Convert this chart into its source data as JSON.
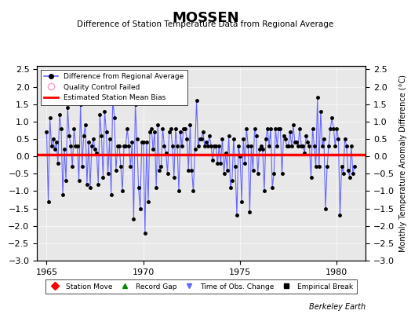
{
  "title": "MOSSEN",
  "subtitle": "Difference of Station Temperature Data from Regional Average",
  "ylabel_right": "Monthly Temperature Anomaly Difference (°C)",
  "bias_value": 0.05,
  "xlim": [
    1964.5,
    1981.5
  ],
  "ylim": [
    -3.0,
    2.6
  ],
  "yticks": [
    -3,
    -2.5,
    -2,
    -1.5,
    -1,
    -0.5,
    0,
    0.5,
    1,
    1.5,
    2,
    2.5
  ],
  "xticks": [
    1965,
    1970,
    1975,
    1980
  ],
  "line_color": "#6666ff",
  "dot_color": "#000000",
  "bias_color": "#ff0000",
  "background_color": "#e8e8e8",
  "footer_text": "Berkeley Earth",
  "legend1_entries": [
    {
      "label": "Difference from Regional Average",
      "color": "#6666ff",
      "marker": "o",
      "linestyle": "-"
    },
    {
      "label": "Quality Control Failed",
      "color": "#ff99cc",
      "marker": "o",
      "linestyle": "none"
    },
    {
      "label": "Estimated Station Mean Bias",
      "color": "#ff0000",
      "marker": "none",
      "linestyle": "-"
    }
  ],
  "legend2_entries": [
    {
      "label": "Station Move",
      "color": "#ff0000",
      "marker": "D",
      "linestyle": "none"
    },
    {
      "label": "Record Gap",
      "color": "#008800",
      "marker": "^",
      "linestyle": "none"
    },
    {
      "label": "Time of Obs. Change",
      "color": "#6666ff",
      "marker": "v",
      "linestyle": "none"
    },
    {
      "label": "Empirical Break",
      "color": "#000000",
      "marker": "s",
      "linestyle": "none"
    }
  ],
  "data_x": [
    1965.0,
    1965.083,
    1965.167,
    1965.25,
    1965.333,
    1965.417,
    1965.5,
    1965.583,
    1965.667,
    1965.75,
    1965.833,
    1965.917,
    1966.0,
    1966.083,
    1966.167,
    1966.25,
    1966.333,
    1966.417,
    1966.5,
    1966.583,
    1966.667,
    1966.75,
    1966.833,
    1966.917,
    1967.0,
    1967.083,
    1967.167,
    1967.25,
    1967.333,
    1967.417,
    1967.5,
    1967.583,
    1967.667,
    1967.75,
    1967.833,
    1967.917,
    1968.0,
    1968.083,
    1968.167,
    1968.25,
    1968.333,
    1968.417,
    1968.5,
    1968.583,
    1968.667,
    1968.75,
    1968.833,
    1968.917,
    1969.0,
    1969.083,
    1969.167,
    1969.25,
    1969.333,
    1969.417,
    1969.5,
    1969.583,
    1969.667,
    1969.75,
    1969.833,
    1969.917,
    1970.0,
    1970.083,
    1970.167,
    1970.25,
    1970.333,
    1970.417,
    1970.5,
    1970.583,
    1970.667,
    1970.75,
    1970.833,
    1970.917,
    1971.0,
    1971.083,
    1971.167,
    1971.25,
    1971.333,
    1971.417,
    1971.5,
    1971.583,
    1971.667,
    1971.75,
    1971.833,
    1971.917,
    1972.0,
    1972.083,
    1972.167,
    1972.25,
    1972.333,
    1972.417,
    1972.5,
    1972.583,
    1972.667,
    1972.75,
    1972.833,
    1972.917,
    1973.0,
    1973.083,
    1973.167,
    1973.25,
    1973.333,
    1973.417,
    1973.5,
    1973.583,
    1973.667,
    1973.75,
    1973.833,
    1973.917,
    1974.0,
    1974.083,
    1974.167,
    1974.25,
    1974.333,
    1974.417,
    1974.5,
    1974.583,
    1974.667,
    1974.75,
    1974.833,
    1974.917,
    1975.0,
    1975.083,
    1975.167,
    1975.25,
    1975.333,
    1975.417,
    1975.5,
    1975.583,
    1975.667,
    1975.75,
    1975.833,
    1975.917,
    1976.0,
    1976.083,
    1976.167,
    1976.25,
    1976.333,
    1976.417,
    1976.5,
    1976.583,
    1976.667,
    1976.75,
    1976.833,
    1976.917,
    1977.0,
    1977.083,
    1977.167,
    1977.25,
    1977.333,
    1977.417,
    1977.5,
    1977.583,
    1977.667,
    1977.75,
    1977.833,
    1977.917,
    1978.0,
    1978.083,
    1978.167,
    1978.25,
    1978.333,
    1978.417,
    1978.5,
    1978.583,
    1978.667,
    1978.75,
    1978.833,
    1978.917,
    1979.0,
    1979.083,
    1979.167,
    1979.25,
    1979.333,
    1979.417,
    1979.5,
    1979.583,
    1979.667,
    1979.75,
    1979.833,
    1979.917,
    1980.0,
    1980.083,
    1980.167,
    1980.25,
    1980.333,
    1980.417,
    1980.5,
    1980.583,
    1980.667,
    1980.75,
    1980.833,
    1980.917
  ],
  "data_y": [
    0.7,
    -1.3,
    1.1,
    0.3,
    0.5,
    0.2,
    0.4,
    -0.2,
    1.2,
    0.8,
    -1.1,
    0.2,
    -0.7,
    1.4,
    0.6,
    0.3,
    -0.3,
    0.8,
    0.3,
    0.3,
    -0.7,
    1.5,
    -0.3,
    0.6,
    0.9,
    -0.8,
    0.4,
    -0.9,
    0.3,
    0.5,
    0.2,
    0.1,
    -0.8,
    1.2,
    0.6,
    -0.6,
    1.3,
    0.7,
    -0.5,
    0.5,
    -1.1,
    1.7,
    1.1,
    -0.4,
    0.3,
    0.3,
    -0.3,
    -1.0,
    0.3,
    0.3,
    0.8,
    0.3,
    -0.3,
    0.4,
    -1.8,
    1.5,
    0.5,
    -0.9,
    -1.5,
    0.4,
    0.4,
    -2.2,
    0.4,
    -1.3,
    0.7,
    0.8,
    0.2,
    0.7,
    -0.9,
    0.9,
    -0.4,
    -0.3,
    0.8,
    0.3,
    0.1,
    -0.5,
    0.7,
    0.8,
    0.3,
    -0.6,
    0.8,
    0.3,
    -1.0,
    0.7,
    0.3,
    0.8,
    0.8,
    0.5,
    -0.4,
    0.9,
    -0.4,
    -1.0,
    0.2,
    1.6,
    0.3,
    0.5,
    0.5,
    0.7,
    0.3,
    0.4,
    0.3,
    0.6,
    0.3,
    -0.1,
    0.3,
    0.3,
    -0.2,
    0.3,
    -0.2,
    0.5,
    -0.5,
    0.1,
    -0.4,
    0.6,
    -0.9,
    -0.7,
    0.5,
    -0.3,
    -1.7,
    0.3,
    0.0,
    -1.3,
    0.5,
    -0.2,
    0.8,
    0.3,
    -1.6,
    0.3,
    -0.4,
    0.8,
    0.6,
    -0.5,
    0.2,
    0.3,
    0.2,
    -1.0,
    0.5,
    0.8,
    0.3,
    0.8,
    -0.9,
    -0.5,
    0.8,
    0.3,
    0.8,
    0.8,
    -0.5,
    0.6,
    0.5,
    0.3,
    0.3,
    0.7,
    0.3,
    0.9,
    0.4,
    0.4,
    0.3,
    0.8,
    0.3,
    0.3,
    0.1,
    0.6,
    0.4,
    0.3,
    -0.6,
    0.8,
    0.3,
    -0.3,
    1.7,
    -0.3,
    1.3,
    0.3,
    0.5,
    -1.5,
    -0.3,
    0.3,
    0.8,
    1.1,
    0.8,
    0.3,
    0.8,
    0.5,
    -1.7,
    -0.3,
    -0.5,
    0.5,
    0.3,
    -0.4,
    -0.6,
    0.3,
    -0.5,
    -0.3
  ]
}
